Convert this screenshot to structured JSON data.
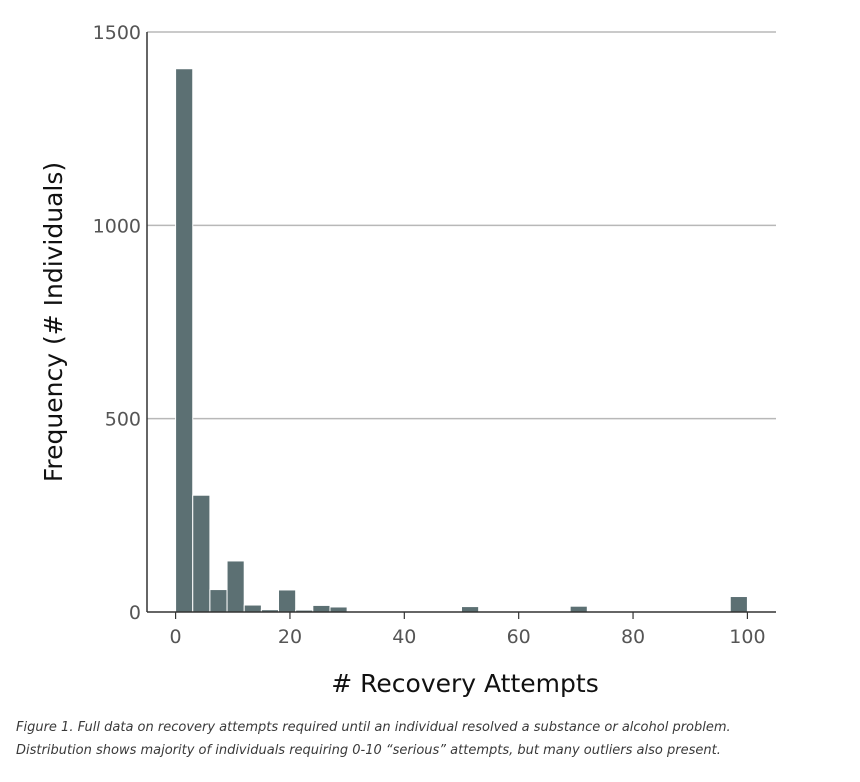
{
  "chart_data": {
    "type": "bar",
    "subtype": "histogram",
    "xlabel": "# Recovery Attempts",
    "ylabel": "Frequency (# Individuals)",
    "xlim": [
      -5,
      105
    ],
    "ylim": [
      0,
      1500
    ],
    "xticks": [
      0,
      20,
      40,
      60,
      80,
      100
    ],
    "yticks": [
      0,
      500,
      1000,
      1500
    ],
    "grid": "horizontal",
    "bar_color": "#5c7073",
    "bar_edge_color": "#ffffff",
    "grid_color": "#b8b8b8",
    "axis_color": "#333333",
    "bins": [
      {
        "x0": 0,
        "x1": 3,
        "value": 1405
      },
      {
        "x0": 3,
        "x1": 6,
        "value": 302
      },
      {
        "x0": 6,
        "x1": 9,
        "value": 58
      },
      {
        "x0": 9,
        "x1": 12,
        "value": 132
      },
      {
        "x0": 12,
        "x1": 15,
        "value": 18
      },
      {
        "x0": 15,
        "x1": 18,
        "value": 6
      },
      {
        "x0": 18,
        "x1": 21,
        "value": 57
      },
      {
        "x0": 21,
        "x1": 24,
        "value": 5
      },
      {
        "x0": 24,
        "x1": 27,
        "value": 17
      },
      {
        "x0": 27,
        "x1": 30,
        "value": 13
      },
      {
        "x0": 50,
        "x1": 53,
        "value": 14
      },
      {
        "x0": 69,
        "x1": 72,
        "value": 15
      },
      {
        "x0": 97,
        "x1": 100,
        "value": 40
      }
    ]
  },
  "caption": {
    "line1": "Figure 1. Full data on recovery attempts required until an individual resolved a substance or alcohol problem.",
    "line2": "Distribution shows majority of individuals requiring 0-10 “serious” attempts, but many outliers also present."
  }
}
